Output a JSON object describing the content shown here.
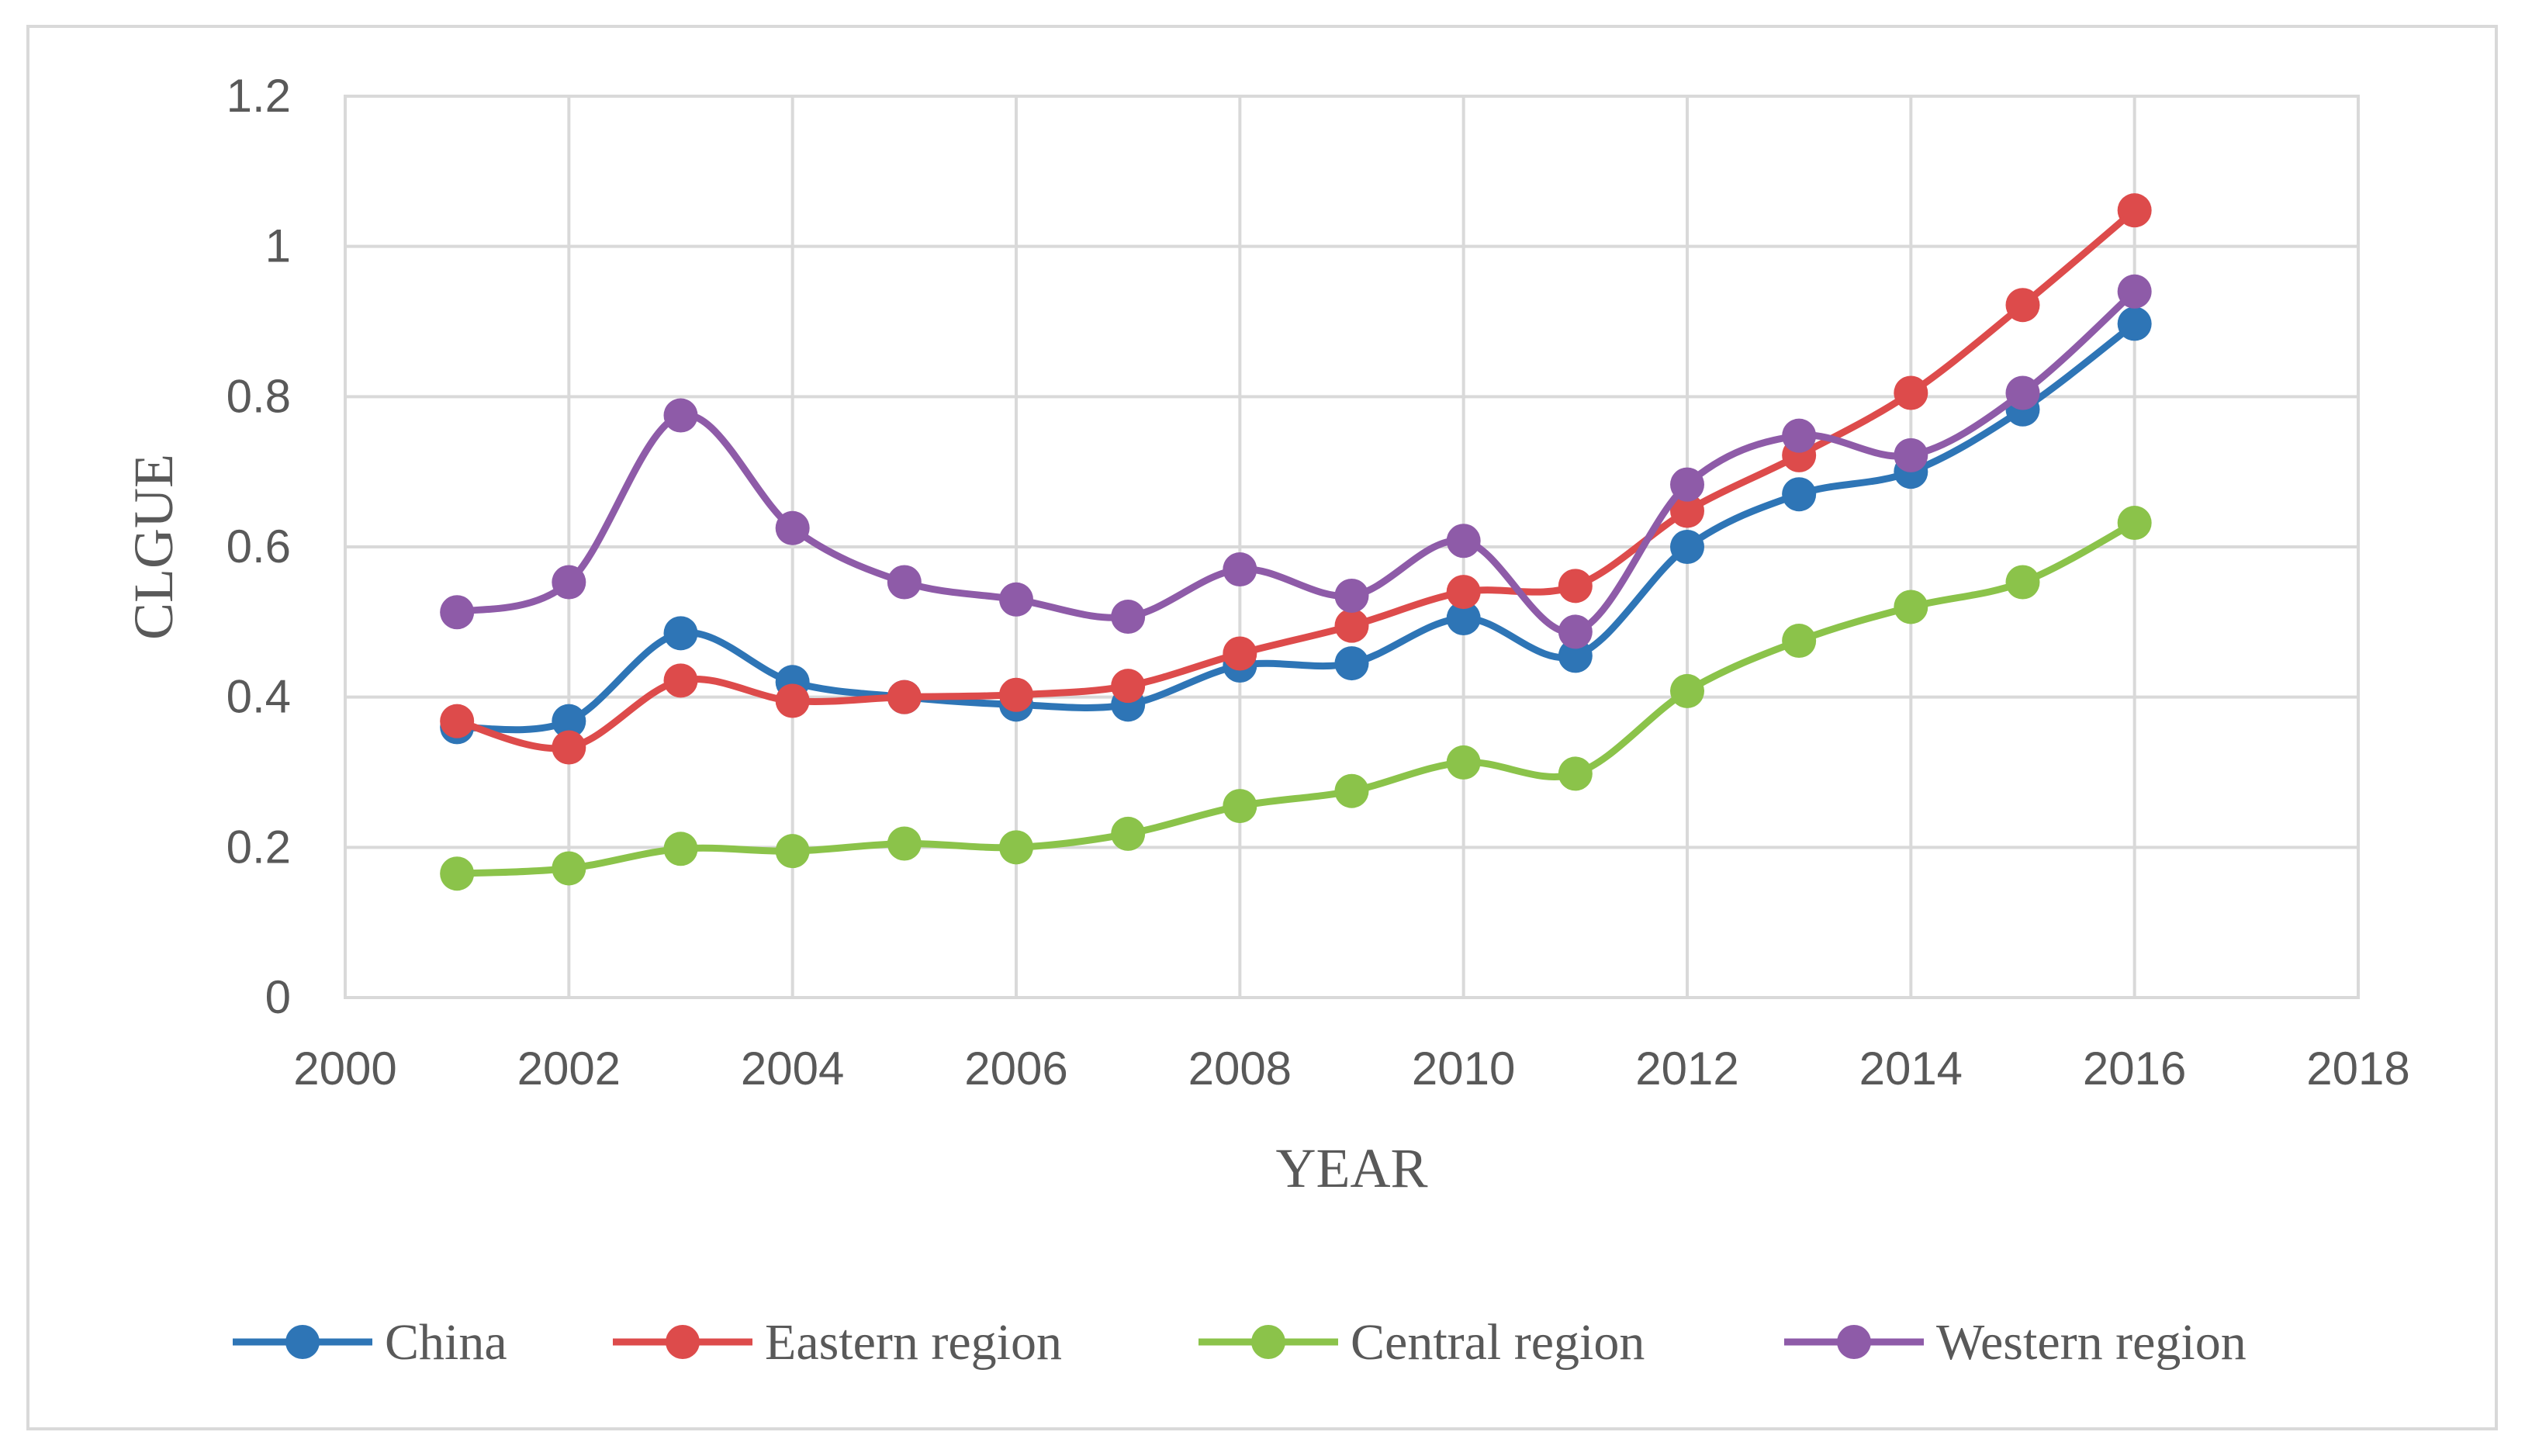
{
  "chart_data": {
    "type": "line",
    "title": "",
    "xlabel": "YEAR",
    "ylabel": "CLGUE",
    "xlim": [
      2000,
      2018
    ],
    "ylim": [
      0,
      1.2
    ],
    "x_ticks": [
      "2000",
      "2002",
      "2004",
      "2006",
      "2008",
      "2010",
      "2012",
      "2014",
      "2016",
      "2018"
    ],
    "y_ticks": [
      "0",
      "0.2",
      "0.4",
      "0.6",
      "0.8",
      "1",
      "1.2"
    ],
    "grid": true,
    "legend_position": "bottom",
    "x": [
      2001,
      2002,
      2003,
      2004,
      2005,
      2006,
      2007,
      2008,
      2009,
      2010,
      2011,
      2012,
      2013,
      2014,
      2015,
      2016
    ],
    "series": [
      {
        "name": "China",
        "color": "#2e75b6",
        "values": [
          0.36,
          0.368,
          0.485,
          0.42,
          0.4,
          0.39,
          0.39,
          0.442,
          0.445,
          0.505,
          0.455,
          0.6,
          0.67,
          0.7,
          0.783,
          0.897
        ]
      },
      {
        "name": "Eastern region",
        "color": "#dd4b4b",
        "values": [
          0.368,
          0.333,
          0.422,
          0.395,
          0.4,
          0.403,
          0.415,
          0.458,
          0.495,
          0.54,
          0.548,
          0.648,
          0.722,
          0.805,
          0.922,
          1.048
        ]
      },
      {
        "name": "Central region",
        "color": "#8bc34a",
        "values": [
          0.165,
          0.172,
          0.198,
          0.195,
          0.205,
          0.2,
          0.218,
          0.255,
          0.275,
          0.313,
          0.298,
          0.408,
          0.475,
          0.52,
          0.553,
          0.632
        ]
      },
      {
        "name": "Western region",
        "color": "#8e5ba8",
        "values": [
          0.513,
          0.553,
          0.775,
          0.625,
          0.553,
          0.53,
          0.507,
          0.57,
          0.535,
          0.608,
          0.487,
          0.683,
          0.748,
          0.722,
          0.805,
          0.94
        ]
      }
    ]
  }
}
